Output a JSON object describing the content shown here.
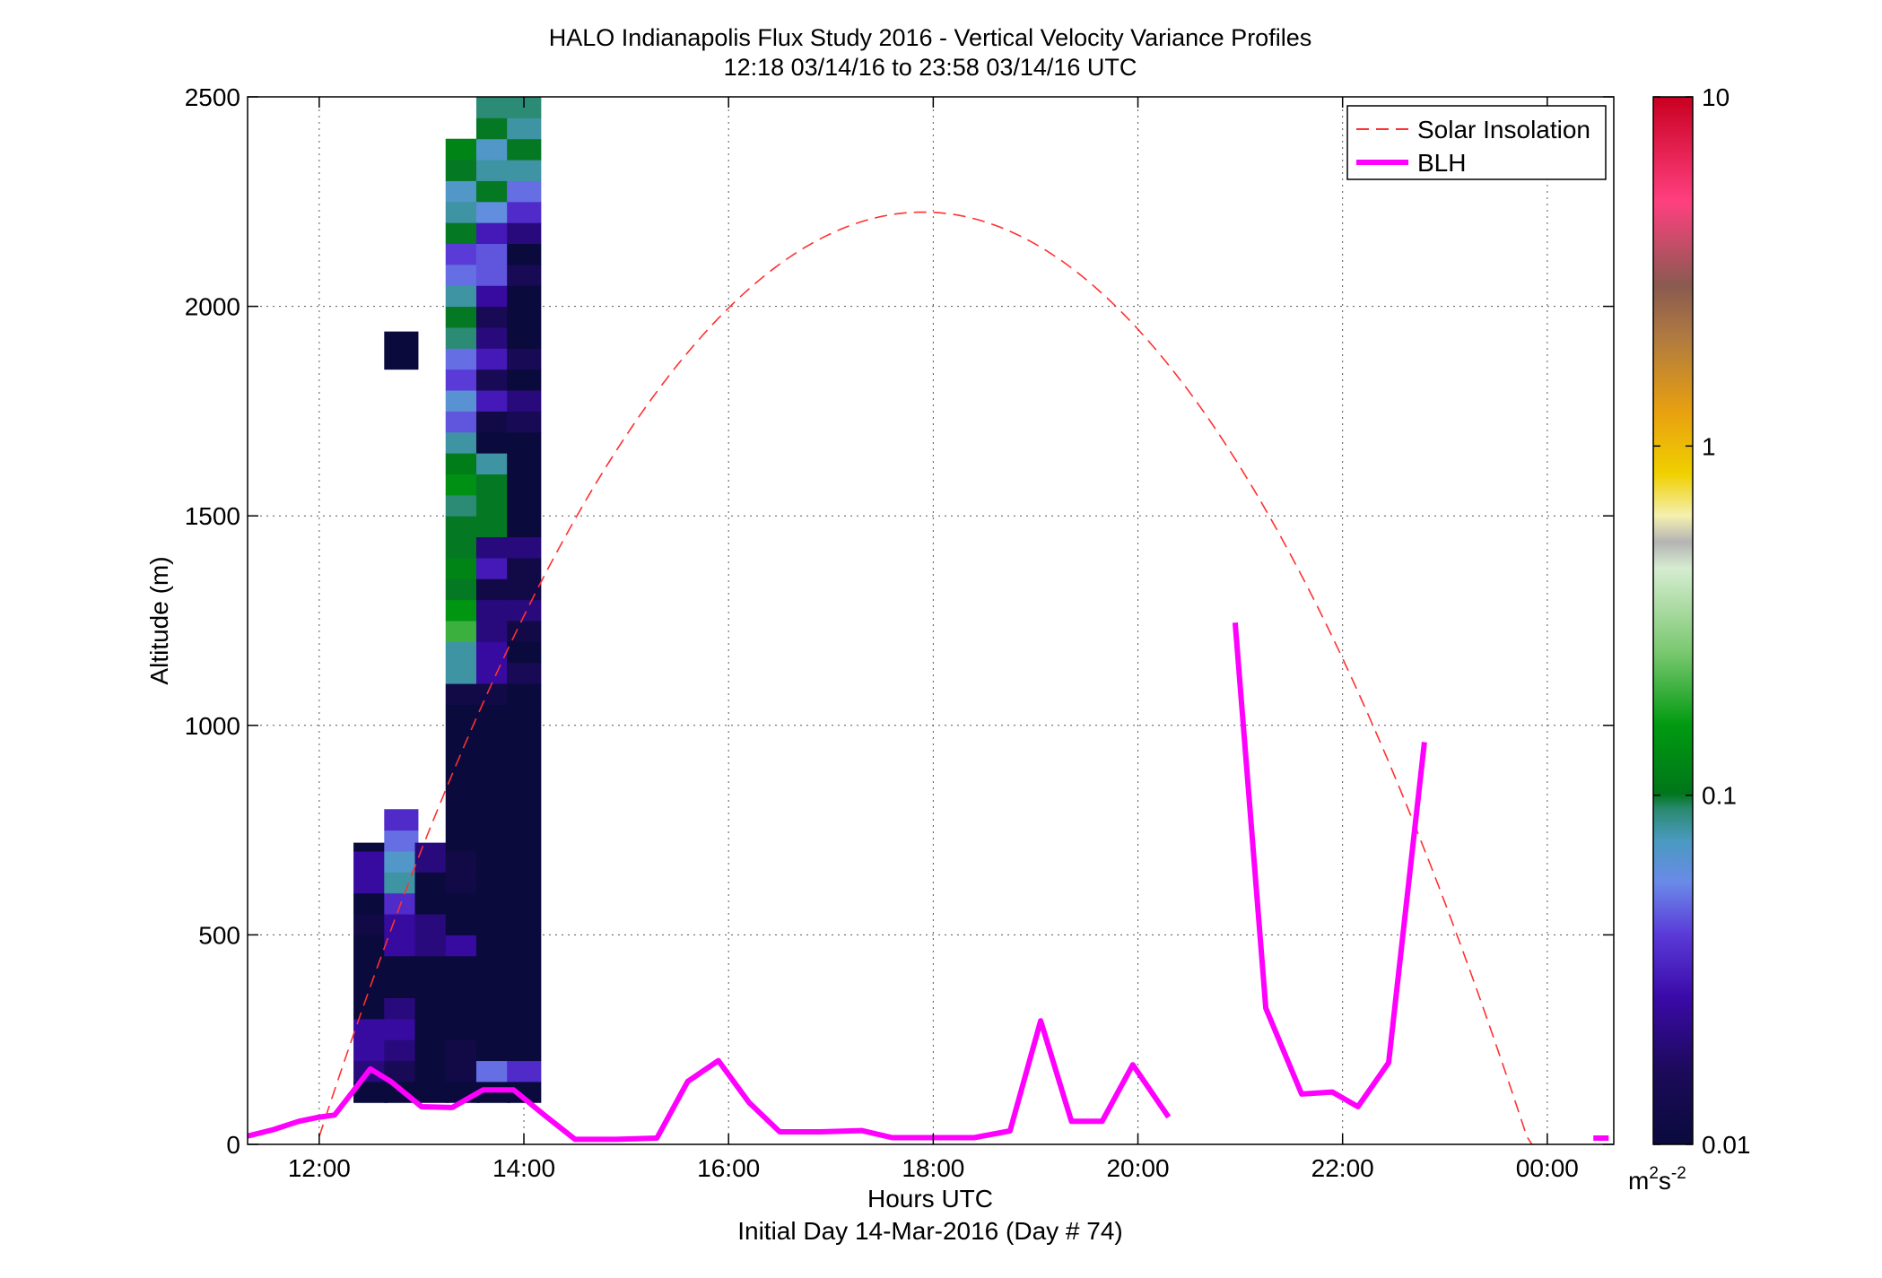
{
  "chart_data": {
    "type": "heatmap",
    "title": "HALO Indianapolis Flux Study 2016 - Vertical Velocity Variance Profiles",
    "subtitle": "12:18 03/14/16 to 23:58 03/14/16  UTC",
    "xlabel": "Hours UTC",
    "xlabel2": "Initial Day 14-Mar-2016 (Day # 74)",
    "ylabel": "Altitude (m)",
    "xlim": [
      11.3,
      24.65
    ],
    "ylim": [
      0,
      2500
    ],
    "x_ticks": [
      {
        "value": 12,
        "label": "12:00"
      },
      {
        "value": 14,
        "label": "14:00"
      },
      {
        "value": 16,
        "label": "16:00"
      },
      {
        "value": 18,
        "label": "18:00"
      },
      {
        "value": 20,
        "label": "20:00"
      },
      {
        "value": 22,
        "label": "22:00"
      },
      {
        "value": 24,
        "label": "00:00"
      }
    ],
    "y_ticks": [
      {
        "value": 0,
        "label": "0"
      },
      {
        "value": 500,
        "label": "500"
      },
      {
        "value": 1000,
        "label": "1000"
      },
      {
        "value": 1500,
        "label": "1500"
      },
      {
        "value": 2000,
        "label": "2000"
      },
      {
        "value": 2500,
        "label": "2500"
      }
    ],
    "grid": true,
    "legend_position": "top-right",
    "legend": [
      {
        "label": "Solar Insolation",
        "style": "dashed",
        "color": "#ff3030"
      },
      {
        "label": "BLH",
        "style": "solid",
        "color": "#ff00ff"
      }
    ],
    "colorbar": {
      "scale": "log",
      "min": 0.01,
      "max": 10,
      "tick_labels": [
        {
          "value": 0.01,
          "label": "0.01"
        },
        {
          "value": 0.1,
          "label": "0.1"
        },
        {
          "value": 1,
          "label": "1"
        },
        {
          "value": 10,
          "label": "10"
        }
      ],
      "unit": "m2s-2",
      "unit_base": "m",
      "unit_sup1": "2",
      "unit_mid": "s",
      "unit_sup2": "-2"
    },
    "solar_insolation": {
      "peak_time": 17.9,
      "peak_altitude": 2225,
      "zero_times": [
        12.0,
        23.85
      ]
    },
    "blh": {
      "segments": [
        [
          [
            11.3,
            20
          ],
          [
            11.55,
            35
          ],
          [
            11.8,
            55
          ],
          [
            12.0,
            65
          ],
          [
            12.15,
            70
          ],
          [
            12.5,
            180
          ],
          [
            12.7,
            150
          ],
          [
            13.0,
            90
          ],
          [
            13.3,
            88
          ],
          [
            13.6,
            130
          ],
          [
            13.9,
            130
          ],
          [
            14.2,
            70
          ],
          [
            14.5,
            12
          ],
          [
            14.9,
            12
          ],
          [
            15.3,
            15
          ],
          [
            15.6,
            150
          ],
          [
            15.9,
            200
          ],
          [
            16.2,
            100
          ],
          [
            16.5,
            30
          ],
          [
            16.9,
            30
          ],
          [
            17.3,
            33
          ],
          [
            17.6,
            16
          ],
          [
            18.0,
            16
          ],
          [
            18.4,
            16
          ],
          [
            18.75,
            32
          ],
          [
            19.05,
            295
          ],
          [
            19.35,
            55
          ],
          [
            19.65,
            55
          ],
          [
            19.95,
            190
          ],
          [
            20.3,
            65
          ]
        ],
        [
          [
            20.95,
            1245
          ],
          [
            21.25,
            325
          ],
          [
            21.6,
            120
          ],
          [
            21.9,
            125
          ],
          [
            22.15,
            90
          ],
          [
            22.45,
            195
          ],
          [
            22.8,
            960
          ]
        ],
        [
          [
            24.45,
            15
          ],
          [
            24.6,
            15
          ]
        ]
      ]
    },
    "variance_cells": {
      "x_step": 0.33,
      "y_step": 50,
      "columns": [
        {
          "x": 12.5,
          "cells": [
            [
              100,
              150,
              0.01
            ],
            [
              150,
              200,
              0.02
            ],
            [
              200,
              250,
              0.025
            ],
            [
              250,
              300,
              0.025
            ],
            [
              300,
              500,
              0.01
            ],
            [
              500,
              550,
              0.012
            ],
            [
              550,
              600,
              0.01
            ],
            [
              600,
              700,
              0.025
            ],
            [
              700,
              720,
              0.01
            ]
          ]
        },
        {
          "x": 12.8,
          "cells": [
            [
              100,
              150,
              0.01
            ],
            [
              150,
              200,
              0.015
            ],
            [
              200,
              250,
              0.02
            ],
            [
              250,
              300,
              0.025
            ],
            [
              300,
              350,
              0.02
            ],
            [
              350,
              450,
              0.01
            ],
            [
              450,
              500,
              0.025
            ],
            [
              500,
              550,
              0.025
            ],
            [
              550,
              600,
              0.035
            ],
            [
              600,
              650,
              0.08
            ],
            [
              650,
              700,
              0.07
            ],
            [
              700,
              750,
              0.05
            ],
            [
              750,
              800,
              0.035
            ],
            [
              1850,
              1940,
              0.01
            ]
          ]
        },
        {
          "x": 13.1,
          "cells": [
            [
              100,
              150,
              0.01
            ],
            [
              150,
              250,
              0.01
            ],
            [
              250,
              350,
              0.01
            ],
            [
              350,
              450,
              0.01
            ],
            [
              450,
              500,
              0.02
            ],
            [
              500,
              550,
              0.02
            ],
            [
              550,
              650,
              0.01
            ],
            [
              650,
              720,
              0.02
            ]
          ]
        },
        {
          "x": 13.4,
          "cells": [
            [
              100,
              150,
              0.01
            ],
            [
              150,
              250,
              0.012
            ],
            [
              250,
              450,
              0.01
            ],
            [
              450,
              500,
              0.025
            ],
            [
              500,
              600,
              0.01
            ],
            [
              600,
              700,
              0.012
            ],
            [
              700,
              1050,
              0.01
            ],
            [
              1050,
              1100,
              0.012
            ],
            [
              1100,
              1200,
              0.08
            ],
            [
              1200,
              1250,
              0.2
            ],
            [
              1250,
              1300,
              0.15
            ],
            [
              1300,
              1350,
              0.1
            ],
            [
              1350,
              1400,
              0.12
            ],
            [
              1400,
              1500,
              0.1
            ],
            [
              1500,
              1550,
              0.09
            ],
            [
              1550,
              1600,
              0.14
            ],
            [
              1600,
              1650,
              0.11
            ],
            [
              1650,
              1700,
              0.08
            ],
            [
              1700,
              1750,
              0.045
            ],
            [
              1750,
              1800,
              0.065
            ],
            [
              1800,
              1850,
              0.04
            ],
            [
              1850,
              1900,
              0.05
            ],
            [
              1900,
              1950,
              0.09
            ],
            [
              1950,
              2000,
              0.1
            ],
            [
              2000,
              2050,
              0.08
            ],
            [
              2050,
              2100,
              0.05
            ],
            [
              2100,
              2150,
              0.04
            ],
            [
              2150,
              2200,
              0.1
            ],
            [
              2200,
              2250,
              0.08
            ],
            [
              2250,
              2300,
              0.07
            ],
            [
              2300,
              2350,
              0.1
            ],
            [
              2350,
              2400,
              0.12
            ]
          ]
        },
        {
          "x": 13.7,
          "cells": [
            [
              100,
              150,
              0.01
            ],
            [
              150,
              200,
              0.05
            ],
            [
              200,
              250,
              0.01
            ],
            [
              250,
              450,
              0.01
            ],
            [
              450,
              550,
              0.01
            ],
            [
              550,
              650,
              0.01
            ],
            [
              650,
              1050,
              0.01
            ],
            [
              1050,
              1100,
              0.012
            ],
            [
              1100,
              1200,
              0.025
            ],
            [
              1200,
              1300,
              0.02
            ],
            [
              1300,
              1350,
              0.012
            ],
            [
              1350,
              1400,
              0.03
            ],
            [
              1400,
              1450,
              0.02
            ],
            [
              1450,
              1500,
              0.1
            ],
            [
              1500,
              1600,
              0.1
            ],
            [
              1600,
              1650,
              0.08
            ],
            [
              1650,
              1700,
              0.01
            ],
            [
              1700,
              1750,
              0.012
            ],
            [
              1750,
              1800,
              0.03
            ],
            [
              1800,
              1850,
              0.015
            ],
            [
              1850,
              1900,
              0.03
            ],
            [
              1900,
              1950,
              0.02
            ],
            [
              1950,
              2000,
              0.015
            ],
            [
              2000,
              2050,
              0.025
            ],
            [
              2050,
              2100,
              0.045
            ],
            [
              2100,
              2150,
              0.045
            ],
            [
              2150,
              2200,
              0.03
            ],
            [
              2200,
              2250,
              0.06
            ],
            [
              2250,
              2300,
              0.1
            ],
            [
              2300,
              2350,
              0.08
            ],
            [
              2350,
              2400,
              0.07
            ],
            [
              2400,
              2450,
              0.1
            ],
            [
              2450,
              2500,
              0.09
            ]
          ]
        },
        {
          "x": 14.0,
          "cells": [
            [
              100,
              150,
              0.01
            ],
            [
              150,
              200,
              0.035
            ],
            [
              200,
              250,
              0.01
            ],
            [
              250,
              1050,
              0.01
            ],
            [
              1050,
              1100,
              0.01
            ],
            [
              1100,
              1150,
              0.015
            ],
            [
              1150,
              1200,
              0.01
            ],
            [
              1200,
              1250,
              0.012
            ],
            [
              1250,
              1300,
              0.02
            ],
            [
              1300,
              1350,
              0.012
            ],
            [
              1350,
              1400,
              0.012
            ],
            [
              1400,
              1450,
              0.02
            ],
            [
              1450,
              1650,
              0.01
            ],
            [
              1650,
              1700,
              0.01
            ],
            [
              1700,
              1750,
              0.015
            ],
            [
              1750,
              1800,
              0.02
            ],
            [
              1800,
              1850,
              0.01
            ],
            [
              1850,
              1900,
              0.015
            ],
            [
              1900,
              1950,
              0.01
            ],
            [
              1950,
              2000,
              0.01
            ],
            [
              2000,
              2050,
              0.01
            ],
            [
              2050,
              2100,
              0.015
            ],
            [
              2100,
              2150,
              0.01
            ],
            [
              2150,
              2200,
              0.02
            ],
            [
              2200,
              2250,
              0.035
            ],
            [
              2250,
              2300,
              0.05
            ],
            [
              2300,
              2350,
              0.08
            ],
            [
              2350,
              2400,
              0.1
            ],
            [
              2400,
              2450,
              0.08
            ],
            [
              2450,
              2500,
              0.09
            ]
          ]
        }
      ]
    }
  }
}
